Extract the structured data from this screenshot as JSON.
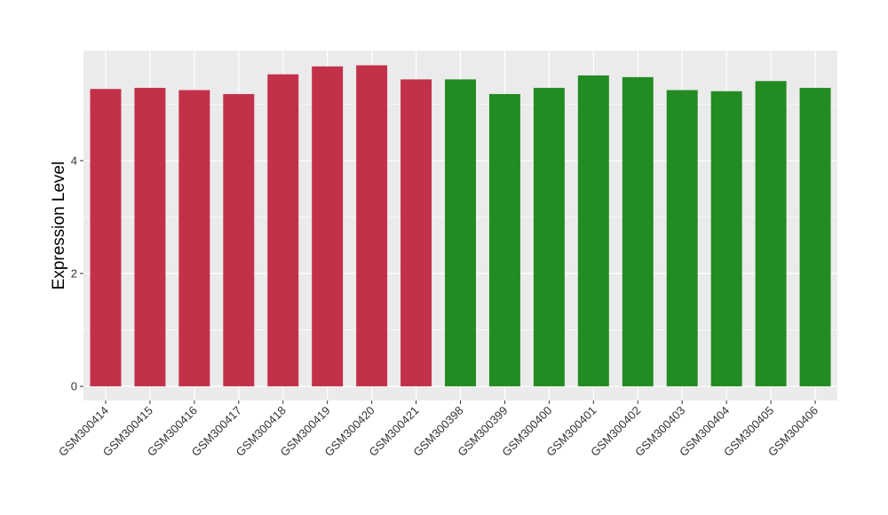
{
  "chart_data": {
    "type": "bar",
    "title": "",
    "xlabel": "",
    "ylabel": "Expression Level",
    "ylim": [
      -0.25,
      5.95
    ],
    "yticks": [
      0,
      2,
      4
    ],
    "grid": true,
    "legend": "none",
    "categories": [
      "GSM300414",
      "GSM300415",
      "GSM300416",
      "GSM300417",
      "GSM300418",
      "GSM300419",
      "GSM300420",
      "GSM300421",
      "GSM300398",
      "GSM300399",
      "GSM300400",
      "GSM300401",
      "GSM300402",
      "GSM300403",
      "GSM300404",
      "GSM300405",
      "GSM300406"
    ],
    "values": [
      5.27,
      5.29,
      5.25,
      5.18,
      5.53,
      5.67,
      5.69,
      5.44,
      5.44,
      5.18,
      5.29,
      5.51,
      5.48,
      5.25,
      5.23,
      5.41,
      5.29
    ],
    "groups": [
      "red",
      "red",
      "red",
      "red",
      "red",
      "red",
      "red",
      "red",
      "green",
      "green",
      "green",
      "green",
      "green",
      "green",
      "green",
      "green",
      "green"
    ],
    "colors": {
      "red": "#C3304A",
      "green": "#228B22",
      "panel": "#EBEBEB",
      "grid": "#FFFFFF"
    }
  }
}
